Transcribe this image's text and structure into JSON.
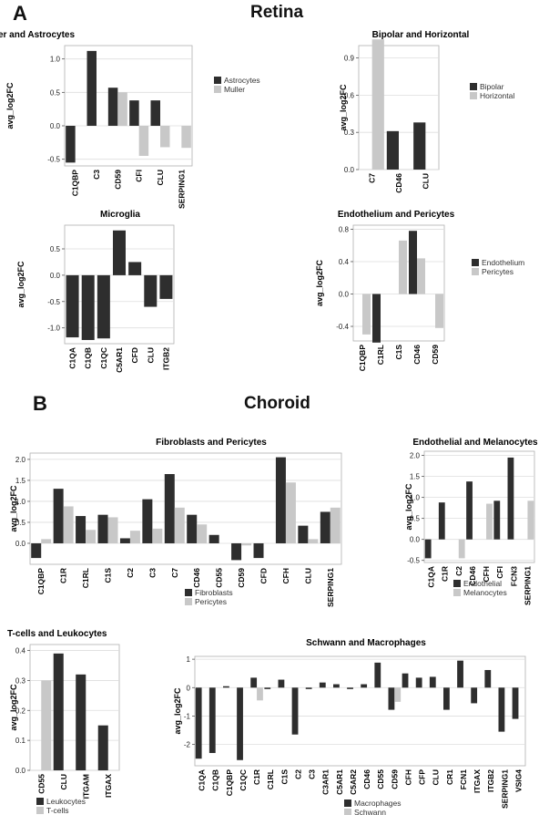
{
  "panels": {
    "a": {
      "letter": "A",
      "title": "Retina"
    },
    "b": {
      "letter": "B",
      "title": "Choroid"
    }
  },
  "palette": {
    "dark": "#2e2e2e",
    "light": "#c8c8c8",
    "grid": "#dddddd",
    "frame": "#b0b0b0"
  },
  "chart_data": [
    {
      "id": "muller",
      "type": "bar",
      "title": "Muller and Astrocytes",
      "ylabel": "avg_log2FC",
      "xlabel": "",
      "categories": [
        "C1QBP",
        "C3",
        "CD59",
        "CFI",
        "CLU",
        "SERPING1"
      ],
      "ylim": [
        -0.6,
        1.2
      ],
      "yticks": [
        -0.5,
        0.0,
        0.5,
        1.0
      ],
      "tick_labels": [
        "-0.5",
        "0.0",
        "0.5",
        "1.0"
      ],
      "grid": true,
      "legend_position": "right",
      "series": [
        {
          "name": "Astrocytes",
          "values": [
            -0.55,
            1.12,
            0.57,
            0.38,
            0.38,
            null
          ]
        },
        {
          "name": "Muller",
          "values": [
            null,
            null,
            0.5,
            -0.45,
            -0.32,
            -0.33
          ]
        }
      ]
    },
    {
      "id": "bipolar",
      "type": "bar",
      "title": "Bipolar and Horizontal",
      "ylabel": "avg_log2FC",
      "xlabel": "",
      "categories": [
        "C7",
        "CD46",
        "CLU"
      ],
      "ylim": [
        0,
        1.0
      ],
      "yticks": [
        0.0,
        0.3,
        0.6,
        0.9
      ],
      "tick_labels": [
        "0.0",
        "0.3",
        "0.6",
        "0.9"
      ],
      "grid": true,
      "legend_position": "right",
      "series": [
        {
          "name": "Bipolar",
          "values": [
            null,
            0.31,
            0.38
          ]
        },
        {
          "name": "Horizontal",
          "values": [
            1.05,
            null,
            null
          ]
        }
      ]
    },
    {
      "id": "microglia",
      "type": "bar",
      "title": "Microglia",
      "ylabel": "avg_log2FC",
      "xlabel": "",
      "categories": [
        "C1QA",
        "C1QB",
        "C1QC",
        "C5AR1",
        "CFD",
        "CLU",
        "ITGB2"
      ],
      "ylim": [
        -1.3,
        0.95
      ],
      "yticks": [
        -1.0,
        -0.5,
        0.0,
        0.5
      ],
      "tick_labels": [
        "-1.0",
        "-0.5",
        "0.0",
        "0.5"
      ],
      "grid": true,
      "legend_position": "none",
      "series": [
        {
          "name": "",
          "values": [
            -1.18,
            -1.23,
            -1.2,
            0.85,
            0.25,
            -0.6,
            -0.45
          ]
        }
      ]
    },
    {
      "id": "endo_retina",
      "type": "bar",
      "title": "Endothelium and Pericytes",
      "ylabel": "avg_log2FC",
      "xlabel": "",
      "categories": [
        "C1QBP",
        "C1RL",
        "C1S",
        "CD46",
        "CD59"
      ],
      "ylim": [
        -0.58,
        0.85
      ],
      "yticks": [
        -0.4,
        0.0,
        0.4,
        0.8
      ],
      "tick_labels": [
        "-0.4",
        "0.0",
        "0.4",
        "0.8"
      ],
      "grid": true,
      "legend_position": "right",
      "series": [
        {
          "name": "Endothelium",
          "values": [
            null,
            -0.6,
            null,
            0.78,
            null
          ]
        },
        {
          "name": "Pericytes",
          "values": [
            -0.5,
            null,
            0.66,
            0.44,
            -0.42
          ]
        }
      ]
    },
    {
      "id": "fibro",
      "type": "bar",
      "title": "Fibroblasts and Pericytes",
      "ylabel": "avg_log2FC",
      "xlabel": "",
      "categories": [
        "C1QBP",
        "C1R",
        "C1RL",
        "C1S",
        "C2",
        "C3",
        "C7",
        "CD46",
        "CD55",
        "CD59",
        "CFD",
        "CFH",
        "CLU",
        "SERPING1"
      ],
      "ylim": [
        -0.5,
        2.15
      ],
      "yticks": [
        0.0,
        0.5,
        1.0,
        1.5,
        2.0
      ],
      "tick_labels": [
        "0.0",
        "0.5",
        "1.0",
        "1.5",
        "2.0"
      ],
      "grid": true,
      "legend_position": "bottom",
      "series": [
        {
          "name": "Fibroblasts",
          "values": [
            -0.35,
            1.3,
            0.65,
            0.68,
            0.12,
            1.05,
            1.65,
            0.68,
            0.2,
            -0.4,
            -0.35,
            2.05,
            0.42,
            0.75
          ]
        },
        {
          "name": "Pericytes",
          "values": [
            0.1,
            0.88,
            0.32,
            0.62,
            0.3,
            0.35,
            0.85,
            0.45,
            null,
            -0.05,
            null,
            1.45,
            0.1,
            0.85
          ]
        }
      ]
    },
    {
      "id": "endo_choroid",
      "type": "bar",
      "title": "Endothelial and Melanocytes",
      "ylabel": "avg_log2FC",
      "xlabel": "",
      "categories": [
        "C1QA",
        "C1R",
        "C2",
        "CD46",
        "CFH",
        "CFI",
        "FCN3",
        "SERPING1"
      ],
      "ylim": [
        -0.55,
        2.1
      ],
      "yticks": [
        -0.5,
        0.0,
        0.5,
        1.0,
        1.5,
        2.0
      ],
      "tick_labels": [
        "-0.5",
        "0.0",
        "0.5",
        "1.0",
        "1.5",
        "2.0"
      ],
      "grid": true,
      "legend_position": "bottom",
      "series": [
        {
          "name": "Endothelial",
          "values": [
            -0.45,
            0.88,
            null,
            1.38,
            null,
            0.92,
            1.95,
            null
          ]
        },
        {
          "name": "Melanocytes",
          "values": [
            null,
            null,
            -0.45,
            null,
            0.85,
            null,
            null,
            0.92
          ]
        }
      ]
    },
    {
      "id": "tcells",
      "type": "bar",
      "title": "T-cells and Leukocytes",
      "ylabel": "avg_log2FC",
      "xlabel": "",
      "categories": [
        "CD55",
        "CLU",
        "ITGAM",
        "ITGAX"
      ],
      "ylim": [
        0,
        0.42
      ],
      "yticks": [
        0.0,
        0.1,
        0.2,
        0.3,
        0.4
      ],
      "tick_labels": [
        "0.0",
        "0.1",
        "0.2",
        "0.3",
        "0.4"
      ],
      "grid": true,
      "legend_position": "bottom",
      "series": [
        {
          "name": "Leukocytes",
          "values": [
            null,
            0.39,
            0.32,
            0.15
          ]
        },
        {
          "name": "T-cells",
          "values": [
            0.3,
            null,
            null,
            null
          ]
        }
      ]
    },
    {
      "id": "schwann",
      "type": "bar",
      "title": "Schwann and Macrophages",
      "ylabel": "avg_log2FC",
      "xlabel": "",
      "categories": [
        "C1QA",
        "C1QB",
        "C1QBP",
        "C1QC",
        "C1R",
        "C1RL",
        "C1S",
        "C2",
        "C3",
        "C3AR1",
        "C5AR1",
        "C5AR2",
        "CD46",
        "CD55",
        "CD59",
        "CFH",
        "CFP",
        "CLU",
        "CR1",
        "FCN1",
        "ITGAX",
        "ITGB2",
        "SERPING1",
        "VSIG4"
      ],
      "ylim": [
        -2.75,
        1.1
      ],
      "yticks": [
        -2,
        -1,
        0,
        1
      ],
      "tick_labels": [
        "-2",
        "-1",
        "0",
        "1"
      ],
      "grid": true,
      "legend_position": "bottom",
      "series": [
        {
          "name": "Macrophages",
          "values": [
            -2.5,
            -2.3,
            0.05,
            -2.55,
            0.35,
            -0.05,
            0.28,
            -1.65,
            -0.05,
            0.18,
            0.12,
            -0.05,
            0.12,
            0.88,
            -0.78,
            0.5,
            0.35,
            0.38,
            -0.78,
            0.95,
            -0.55,
            0.62,
            -1.55,
            -1.1
          ]
        },
        {
          "name": "Schwann",
          "values": [
            null,
            null,
            null,
            null,
            -0.45,
            null,
            null,
            null,
            null,
            null,
            null,
            null,
            null,
            null,
            -0.5,
            null,
            null,
            null,
            null,
            null,
            null,
            null,
            null,
            null
          ]
        }
      ]
    }
  ]
}
